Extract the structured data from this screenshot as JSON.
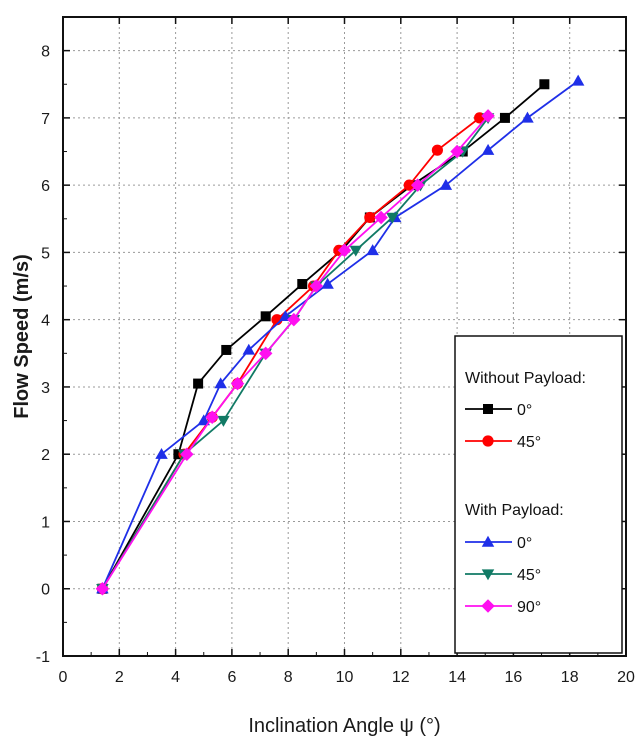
{
  "chart_data": {
    "type": "line",
    "xlabel": "Inclination Angle ψ (°)",
    "ylabel": "Flow Speed (m/s)",
    "xlim": [
      0,
      20
    ],
    "ylim": [
      -1,
      8.5
    ],
    "xticks": [
      0,
      2,
      4,
      6,
      8,
      10,
      12,
      14,
      16,
      18,
      20
    ],
    "yticks": [
      -1,
      0,
      1,
      2,
      3,
      4,
      5,
      6,
      7,
      8
    ],
    "grid": true,
    "legend_position": "bottom-right",
    "legend_groups": [
      {
        "title": "Without Payload:",
        "series": [
          0,
          1
        ]
      },
      {
        "title": "With Payload:",
        "series": [
          2,
          3,
          4
        ]
      }
    ],
    "series": [
      {
        "name": "0°",
        "group": "Without Payload:",
        "marker": "square",
        "color": "#000000",
        "points": [
          [
            1.4,
            0
          ],
          [
            4.1,
            2
          ],
          [
            4.8,
            3.05
          ],
          [
            5.8,
            3.55
          ],
          [
            7.2,
            4.05
          ],
          [
            8.5,
            4.53
          ],
          [
            9.9,
            5.03
          ],
          [
            10.9,
            5.52
          ],
          [
            12.4,
            6.0
          ],
          [
            14.2,
            6.5
          ],
          [
            15.7,
            7.0
          ],
          [
            17.1,
            7.5
          ]
        ]
      },
      {
        "name": "45°",
        "group": "Without Payload:",
        "marker": "circle",
        "color": "#ff0000",
        "points": [
          [
            1.4,
            0
          ],
          [
            4.3,
            2
          ],
          [
            5.3,
            2.55
          ],
          [
            6.2,
            3.05
          ],
          [
            7.6,
            4.0
          ],
          [
            8.9,
            4.5
          ],
          [
            9.8,
            5.03
          ],
          [
            10.9,
            5.52
          ],
          [
            12.3,
            6.0
          ],
          [
            13.3,
            6.52
          ],
          [
            14.8,
            7.0
          ]
        ]
      },
      {
        "name": "0°",
        "group": "With Payload:",
        "marker": "triangle-up",
        "color": "#1f2fe8",
        "points": [
          [
            1.4,
            0
          ],
          [
            3.5,
            2
          ],
          [
            5.0,
            2.5
          ],
          [
            5.6,
            3.05
          ],
          [
            6.6,
            3.55
          ],
          [
            7.9,
            4.05
          ],
          [
            9.4,
            4.53
          ],
          [
            11.0,
            5.03
          ],
          [
            11.8,
            5.52
          ],
          [
            13.6,
            6.0
          ],
          [
            15.1,
            6.52
          ],
          [
            16.5,
            7.0
          ],
          [
            18.3,
            7.55
          ]
        ]
      },
      {
        "name": "45°",
        "group": "With Payload:",
        "marker": "triangle-down",
        "color": "#117a65",
        "points": [
          [
            1.4,
            0
          ],
          [
            4.3,
            2
          ],
          [
            5.7,
            2.5
          ],
          [
            7.2,
            3.5
          ],
          [
            8.2,
            4.0
          ],
          [
            9.0,
            4.5
          ],
          [
            10.4,
            5.03
          ],
          [
            11.7,
            5.52
          ],
          [
            12.7,
            6.0
          ],
          [
            14.2,
            6.5
          ],
          [
            15.1,
            7.0
          ]
        ]
      },
      {
        "name": "90°",
        "group": "With Payload:",
        "marker": "diamond",
        "color": "#ff10f0",
        "points": [
          [
            1.4,
            0
          ],
          [
            4.4,
            2
          ],
          [
            5.3,
            2.55
          ],
          [
            6.2,
            3.05
          ],
          [
            7.2,
            3.5
          ],
          [
            8.2,
            4.0
          ],
          [
            9.0,
            4.5
          ],
          [
            10.0,
            5.03
          ],
          [
            11.3,
            5.52
          ],
          [
            12.6,
            6.0
          ],
          [
            14.0,
            6.5
          ],
          [
            15.1,
            7.03
          ]
        ]
      }
    ]
  }
}
